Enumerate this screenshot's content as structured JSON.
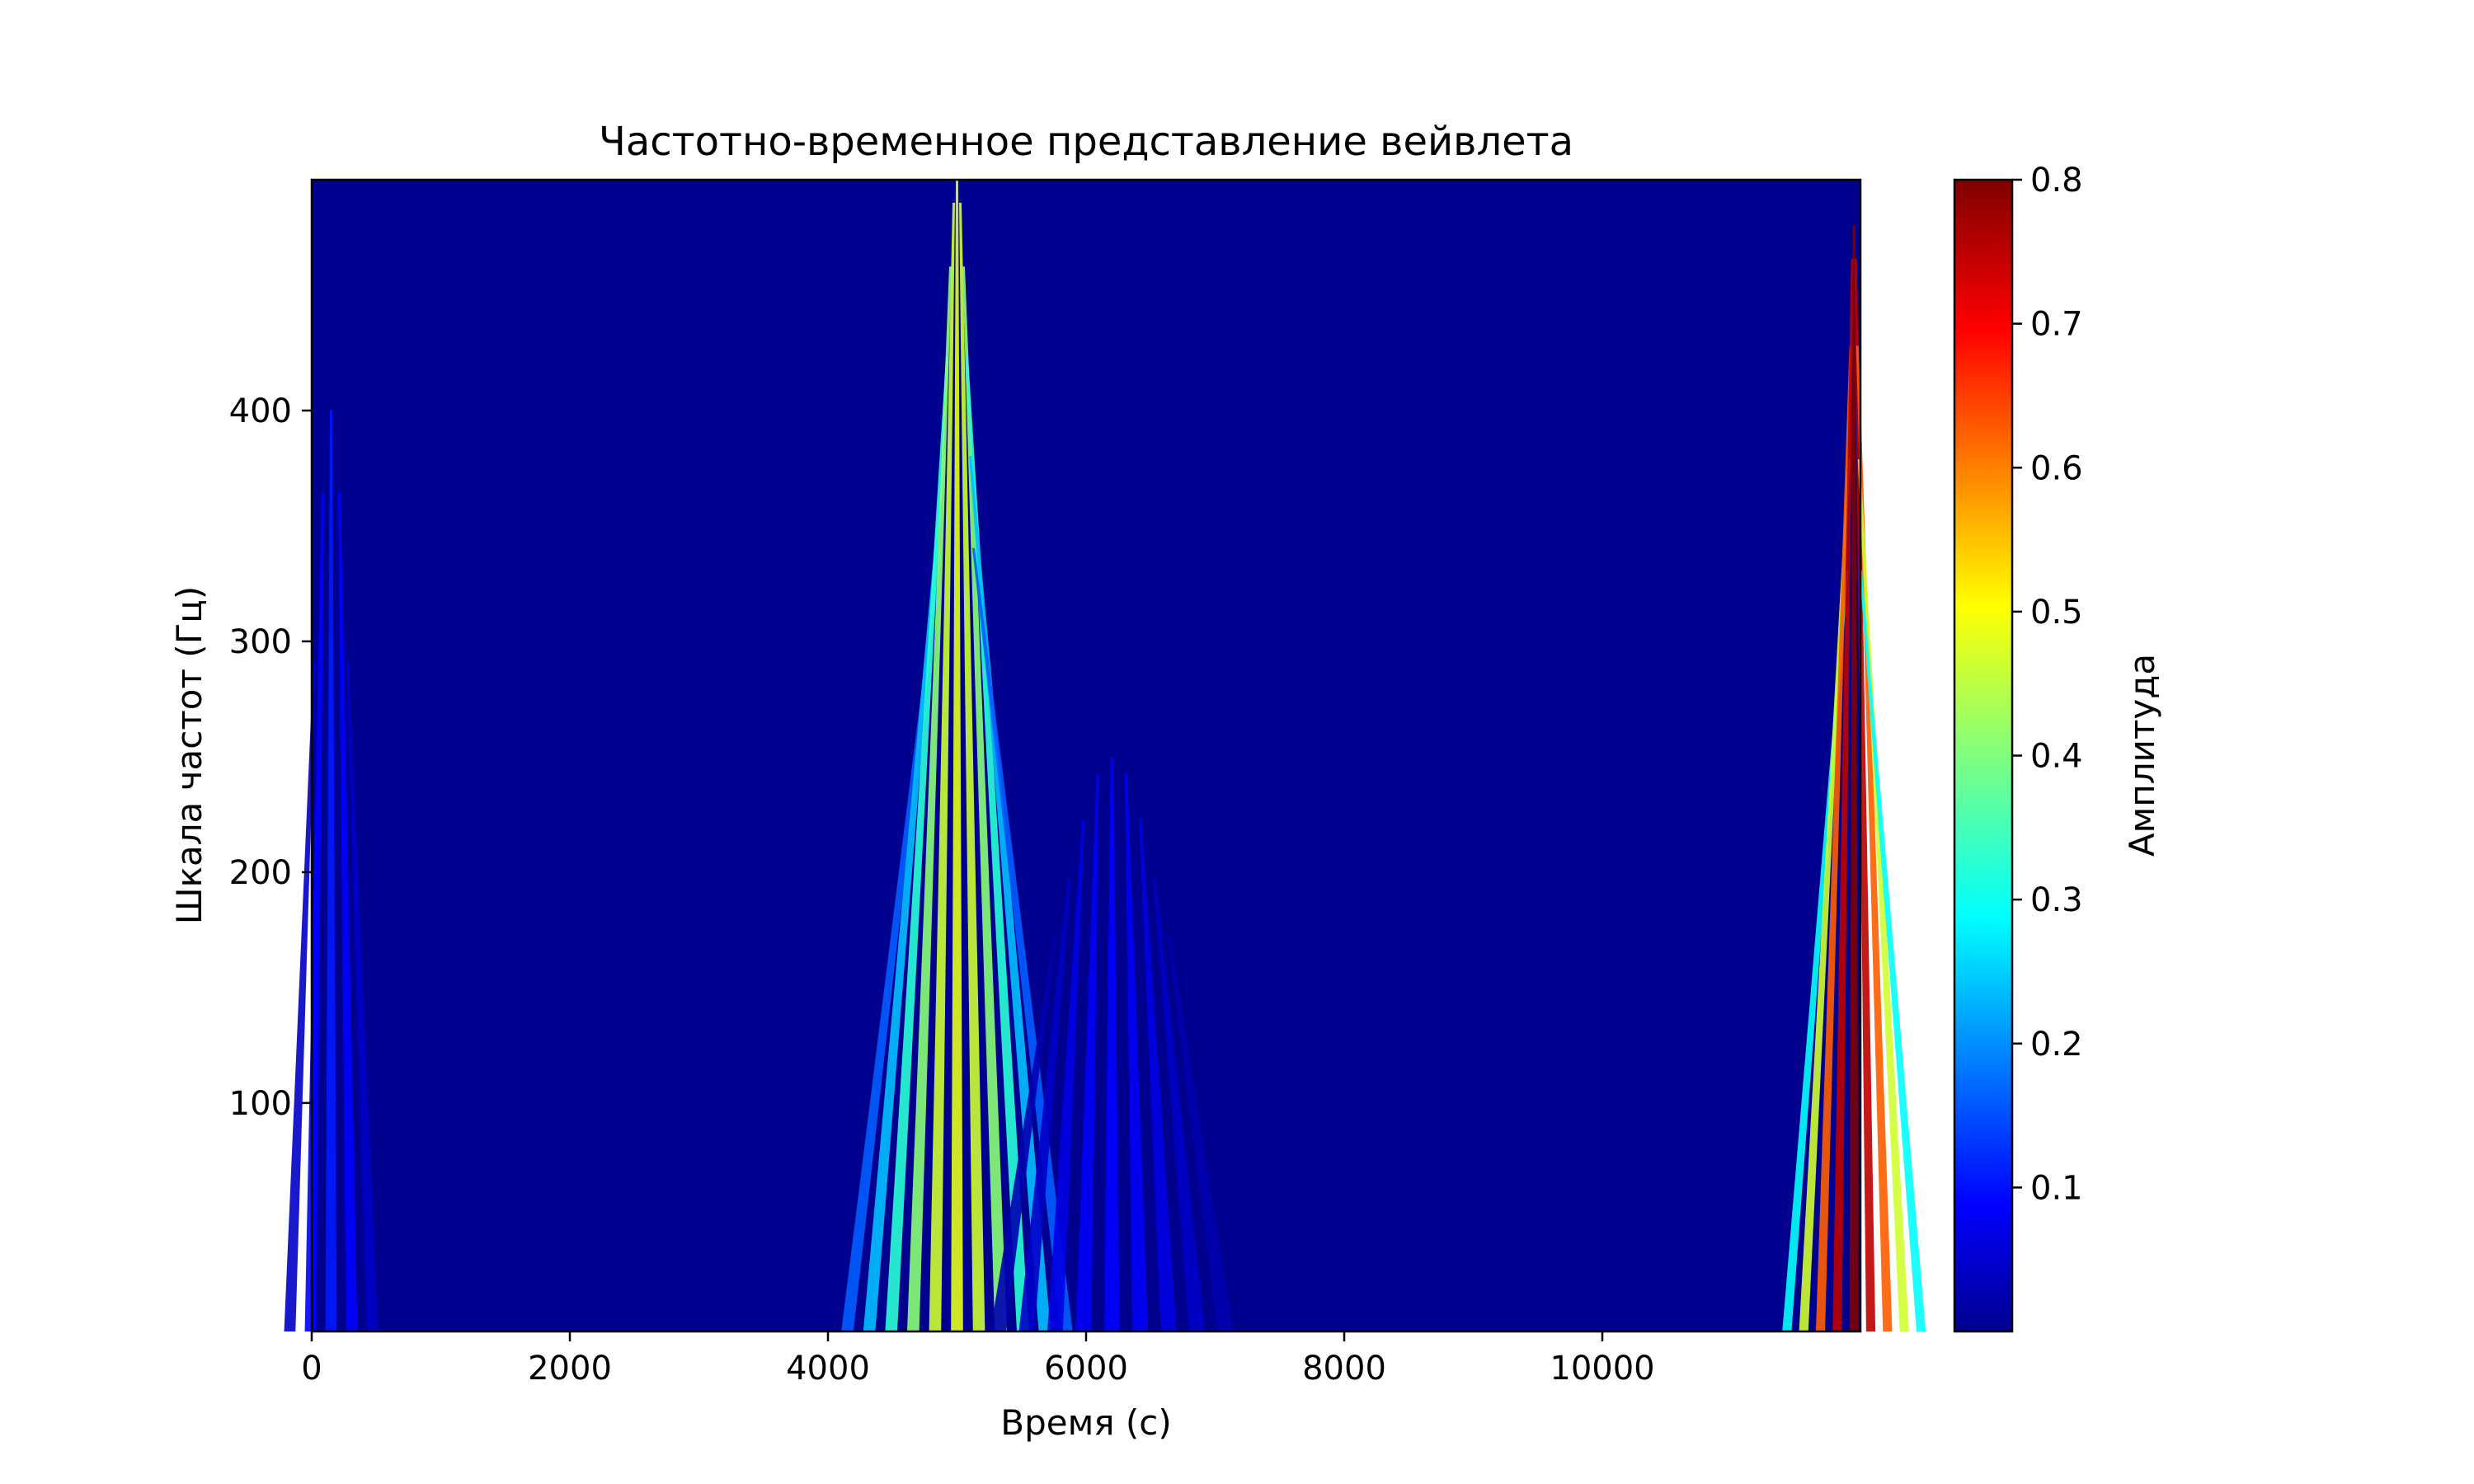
{
  "chart_data": {
    "type": "heatmap",
    "title": "Частотно-временное представление вейвлета",
    "xlabel": "Время (с)",
    "ylabel": "Шкала частот (Гц)",
    "xlim": [
      0,
      12000
    ],
    "ylim": [
      1,
      500
    ],
    "x_ticks": [
      0,
      2000,
      4000,
      6000,
      8000,
      10000
    ],
    "y_ticks": [
      100,
      200,
      300,
      400
    ],
    "colormap": "jet",
    "colorbar": {
      "label": "Амплитуда",
      "range": [
        0.0,
        0.8
      ],
      "ticks": [
        "0.1",
        "0.2",
        "0.3",
        "0.4",
        "0.5",
        "0.6",
        "0.7",
        "0.8"
      ]
    },
    "features": [
      {
        "name": "left-edge",
        "x_center": 150,
        "peak_amplitude": 0.12,
        "extent_hz": 400
      },
      {
        "name": "mid-burst",
        "x_center": 5000,
        "peak_amplitude": 0.48,
        "extent_hz": 500
      },
      {
        "name": "mid-tail",
        "x_center": 6200,
        "peak_amplitude": 0.1,
        "extent_hz": 250
      },
      {
        "name": "right-burst",
        "x_center": 11950,
        "peak_amplitude": 0.8,
        "extent_hz": 480
      }
    ]
  }
}
